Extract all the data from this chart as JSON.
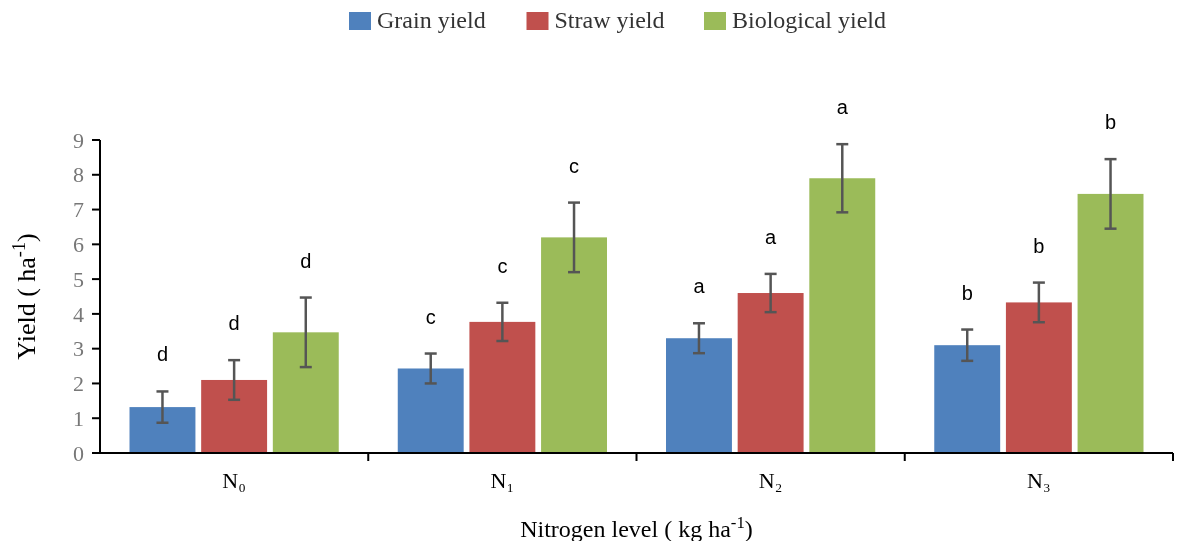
{
  "chart_data": {
    "type": "bar",
    "xlabel": "Nitrogen level ( kg ha$^{-1}$)",
    "ylabel": "Yield ( ha$^{-1}$)",
    "categories": [
      "N₀",
      "N₁",
      "N₂",
      "N₃"
    ],
    "series": [
      {
        "name": "Grain yield",
        "color": "#4f81bd",
        "values": [
          1.32,
          2.43,
          3.3,
          3.1
        ],
        "errors": [
          0.45,
          0.43,
          0.43,
          0.45
        ],
        "value_labels": [
          "d",
          "c",
          "a",
          "b"
        ]
      },
      {
        "name": "Straw yield",
        "color": "#c0504d",
        "values": [
          2.1,
          3.77,
          4.6,
          4.33
        ],
        "errors": [
          0.57,
          0.55,
          0.55,
          0.57
        ],
        "value_labels": [
          "d",
          "c",
          "a",
          "b"
        ]
      },
      {
        "name": "Biological yield",
        "color": "#9bbb59",
        "values": [
          3.47,
          6.2,
          7.9,
          7.45
        ],
        "errors": [
          1.0,
          1.0,
          0.98,
          1.0
        ],
        "value_labels": [
          "d",
          "c",
          "a",
          "b"
        ]
      }
    ],
    "ylim": [
      0,
      9
    ],
    "yticks": [
      0,
      1,
      2,
      3,
      4,
      5,
      6,
      7,
      8,
      9
    ],
    "legend": "top",
    "grid": false
  }
}
